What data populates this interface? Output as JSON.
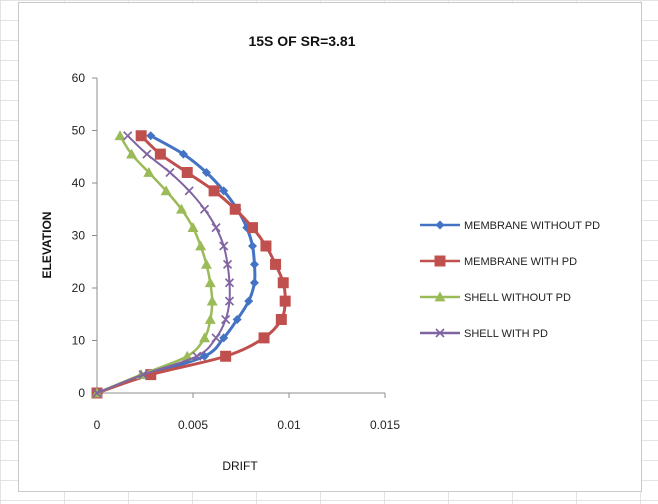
{
  "chart_data": {
    "type": "line",
    "title": "15S OF SR=3.81",
    "xlabel": "DRIFT",
    "ylabel": "ELEVATION",
    "xlim": [
      0,
      0.015
    ],
    "ylim": [
      0,
      60
    ],
    "xticks": [
      "0",
      "0.005",
      "0.01",
      "0.015"
    ],
    "yticks": [
      "0",
      "10",
      "20",
      "30",
      "40",
      "50",
      "60"
    ],
    "grid": false,
    "legend_position": "right",
    "series": [
      {
        "name": "MEMBRANE WITHOUT PD",
        "color": "#4472C4",
        "marker": "diamond",
        "x": [
          0,
          0.0026,
          0.0056,
          0.0066,
          0.0073,
          0.0079,
          0.0082,
          0.0082,
          0.0081,
          0.0078,
          0.0073,
          0.0066,
          0.0057,
          0.0045,
          0.0028
        ],
        "y": [
          0,
          3.5,
          7,
          10.5,
          14,
          17.5,
          21,
          24.5,
          28,
          31.5,
          35,
          38.5,
          42,
          45.5,
          49
        ]
      },
      {
        "name": "MEMBRANE WITH PD",
        "color": "#C0504D",
        "marker": "square",
        "x": [
          0,
          0.0028,
          0.0067,
          0.0087,
          0.0096,
          0.0098,
          0.0097,
          0.0093,
          0.0088,
          0.0081,
          0.0072,
          0.0061,
          0.0047,
          0.0033,
          0.0023
        ],
        "y": [
          0,
          3.5,
          7,
          10.5,
          14,
          17.5,
          21,
          24.5,
          28,
          31.5,
          35,
          38.5,
          42,
          45.5,
          49
        ]
      },
      {
        "name": "SHELL WITHOUT PD",
        "color": "#9BBB59",
        "marker": "triangle",
        "x": [
          0,
          0.0023,
          0.0047,
          0.0056,
          0.0059,
          0.006,
          0.0059,
          0.0057,
          0.0054,
          0.005,
          0.0044,
          0.0036,
          0.0027,
          0.0018,
          0.0012
        ],
        "y": [
          0,
          3.5,
          7,
          10.5,
          14,
          17.5,
          21,
          24.5,
          28,
          31.5,
          35,
          38.5,
          42,
          45.5,
          49
        ]
      },
      {
        "name": "SHELL WITH PD",
        "color": "#8064A2",
        "marker": "x",
        "x": [
          0,
          0.0024,
          0.0052,
          0.0062,
          0.0067,
          0.0069,
          0.0069,
          0.0068,
          0.0066,
          0.0062,
          0.0056,
          0.0048,
          0.0038,
          0.0026,
          0.0016
        ],
        "y": [
          0,
          3.5,
          7,
          10.5,
          14,
          17.5,
          21,
          24.5,
          28,
          31.5,
          35,
          38.5,
          42,
          45.5,
          49
        ]
      }
    ]
  }
}
